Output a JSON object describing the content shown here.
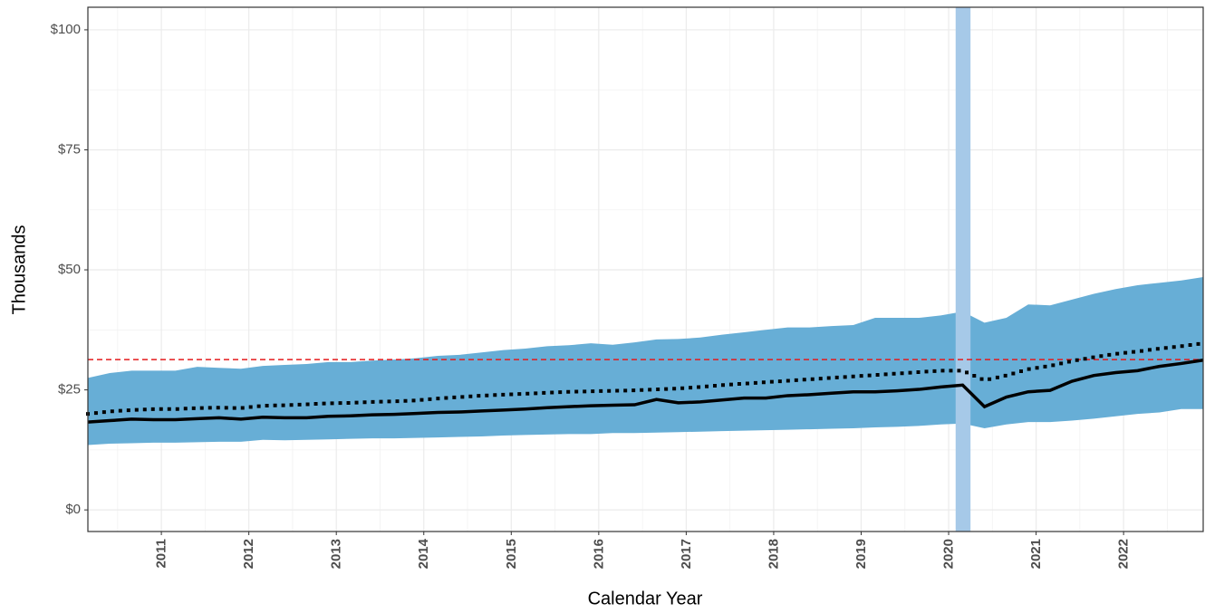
{
  "chart_data": {
    "type": "line",
    "xlabel": "Calendar Year",
    "ylabel": "Thousands",
    "xlim": [
      2010.16,
      2022.91
    ],
    "ylim": [
      -4.5,
      104.7
    ],
    "xticks": [
      2011,
      2012,
      2013,
      2014,
      2015,
      2016,
      2017,
      2018,
      2019,
      2020,
      2021,
      2022
    ],
    "yticks": [
      {
        "value": 0,
        "label": "$0"
      },
      {
        "value": 25,
        "label": "$25"
      },
      {
        "value": 50,
        "label": "$50"
      },
      {
        "value": 75,
        "label": "$75"
      },
      {
        "value": 100,
        "label": "$100"
      }
    ],
    "grid": true,
    "x": [
      2010.16,
      2010.41,
      2010.66,
      2010.91,
      2011.16,
      2011.41,
      2011.66,
      2011.91,
      2012.16,
      2012.41,
      2012.66,
      2012.91,
      2013.16,
      2013.41,
      2013.66,
      2013.91,
      2014.16,
      2014.41,
      2014.66,
      2014.91,
      2015.16,
      2015.41,
      2015.66,
      2015.91,
      2016.16,
      2016.41,
      2016.66,
      2016.91,
      2017.16,
      2017.41,
      2017.66,
      2017.91,
      2018.16,
      2018.41,
      2018.66,
      2018.91,
      2019.16,
      2019.41,
      2019.66,
      2019.91,
      2020.16,
      2020.41,
      2020.66,
      2020.91,
      2021.16,
      2021.41,
      2021.66,
      2021.91,
      2022.16,
      2022.41,
      2022.66,
      2022.91
    ],
    "band": {
      "color": "#67aed6",
      "upper": [
        27.5,
        28.5,
        29.0,
        29.0,
        29.0,
        29.8,
        29.6,
        29.4,
        30.0,
        30.2,
        30.4,
        30.8,
        30.8,
        31.1,
        31.3,
        31.6,
        32.1,
        32.3,
        32.8,
        33.3,
        33.6,
        34.1,
        34.3,
        34.7,
        34.4,
        34.9,
        35.5,
        35.6,
        35.9,
        36.5,
        37.0,
        37.5,
        38.0,
        38.0,
        38.3,
        38.5,
        40.0,
        40.0,
        40.0,
        40.5,
        41.3,
        39.0,
        40.0,
        42.8,
        42.6,
        43.8,
        45.0,
        46.0,
        46.8,
        47.3,
        47.8,
        48.5
      ],
      "lower": [
        13.5,
        13.8,
        13.9,
        14.0,
        14.0,
        14.1,
        14.2,
        14.2,
        14.6,
        14.5,
        14.6,
        14.7,
        14.8,
        14.9,
        14.9,
        15.0,
        15.1,
        15.2,
        15.3,
        15.5,
        15.6,
        15.7,
        15.8,
        15.8,
        16.0,
        16.0,
        16.1,
        16.2,
        16.3,
        16.4,
        16.5,
        16.6,
        16.7,
        16.8,
        16.9,
        17.0,
        17.2,
        17.3,
        17.5,
        17.8,
        18.0,
        17.0,
        17.8,
        18.3,
        18.3,
        18.6,
        19.0,
        19.5,
        20.0,
        20.3,
        21.0,
        21.0
      ]
    },
    "series": [
      {
        "color": "#000000",
        "style": "solid",
        "values": [
          18.3,
          18.6,
          18.9,
          18.8,
          18.8,
          19.0,
          19.2,
          18.9,
          19.3,
          19.2,
          19.2,
          19.5,
          19.6,
          19.8,
          19.9,
          20.1,
          20.3,
          20.4,
          20.6,
          20.8,
          21.0,
          21.3,
          21.5,
          21.7,
          21.8,
          21.9,
          23.0,
          22.3,
          22.5,
          22.9,
          23.3,
          23.3,
          23.8,
          24.0,
          24.3,
          24.6,
          24.6,
          24.8,
          25.1,
          25.6,
          26.0,
          21.5,
          23.5,
          24.6,
          24.9,
          26.8,
          28.0,
          28.6,
          29.0,
          29.9,
          30.5,
          31.2
        ]
      },
      {
        "color": "#000000",
        "style": "dotted",
        "values": [
          20.0,
          20.5,
          20.8,
          21.0,
          21.0,
          21.2,
          21.3,
          21.2,
          21.7,
          21.8,
          22.0,
          22.2,
          22.3,
          22.5,
          22.6,
          22.8,
          23.2,
          23.5,
          23.8,
          24.0,
          24.2,
          24.4,
          24.6,
          24.7,
          24.8,
          24.9,
          25.1,
          25.3,
          25.6,
          26.0,
          26.3,
          26.6,
          26.9,
          27.2,
          27.5,
          27.8,
          28.1,
          28.4,
          28.7,
          29.0,
          29.0,
          27.0,
          28.0,
          29.3,
          30.0,
          31.0,
          31.8,
          32.5,
          33.0,
          33.6,
          34.1,
          34.7
        ]
      }
    ],
    "hline": {
      "value": 31.3,
      "color": "#e41a1c"
    },
    "shade": {
      "xmin": 2020.08,
      "xmax": 2020.25,
      "color": "#a6c9e8"
    }
  }
}
